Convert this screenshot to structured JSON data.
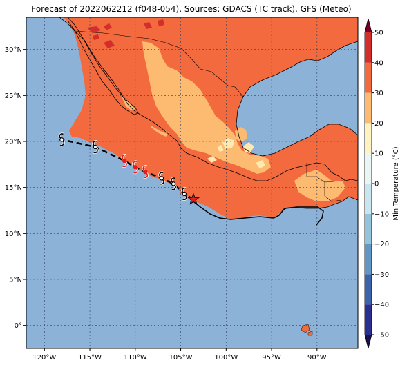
{
  "title": "Forecast of 2022062212 (f048-054), Sources: GDACS (TC track), GFS (Meteo)",
  "colors": {
    "ocean": "#8db2d7",
    "land_hot": "#f26a3e",
    "land_warm": "#fdbb71",
    "land_mild": "#fee9b2",
    "land_red": "#d32d2c",
    "track": "#000000",
    "storm_forecast": "#e41a1c",
    "current_position": "#e41a1c"
  },
  "chart_data": {
    "type": "map",
    "projection": "PlateCarree",
    "lon_range": [
      -122,
      -85.5
    ],
    "lat_range": [
      -2.5,
      33.5
    ],
    "x_ticks": [
      -120,
      -115,
      -110,
      -105,
      -100,
      -95,
      -90
    ],
    "x_tick_labels": [
      "120°W",
      "115°W",
      "110°W",
      "105°W",
      "100°W",
      "95°W",
      "90°W"
    ],
    "y_ticks": [
      0,
      5,
      10,
      15,
      20,
      25,
      30
    ],
    "y_tick_labels": [
      "0°",
      "5°N",
      "10°N",
      "15°N",
      "20°N",
      "25°N",
      "30°N"
    ],
    "grid": true,
    "colorbar": {
      "label": "Min Temperature (°C)",
      "ticks": [
        -50,
        -40,
        -30,
        -20,
        -10,
        0,
        10,
        20,
        30,
        40,
        50
      ],
      "tick_labels": [
        "−50",
        "−40",
        "−30",
        "−20",
        "−10",
        "0",
        "10",
        "20",
        "30",
        "40",
        "50"
      ],
      "levels": [
        -50,
        -40,
        -30,
        -20,
        -10,
        0,
        10,
        20,
        30,
        40,
        50
      ],
      "colors": [
        "#2b2f8f",
        "#3d64ab",
        "#6097c4",
        "#94c3dc",
        "#c8e6ef",
        "#eaf6f3",
        "#fff3c2",
        "#fdbb71",
        "#f26a3e",
        "#d32d2c",
        "#9c0a2a"
      ],
      "extend": "both",
      "under_color": "#1a1050",
      "over_color": "#7a0026"
    },
    "track": [
      {
        "lon": -103.6,
        "lat": 13.7,
        "marker": "star",
        "color": "red"
      },
      {
        "lon": -104.6,
        "lat": 14.3,
        "marker": "storm",
        "color": "black"
      },
      {
        "lon": -105.8,
        "lat": 15.4,
        "marker": "storm",
        "color": "black"
      },
      {
        "lon": -107.1,
        "lat": 16.0,
        "marker": "storm",
        "color": "black"
      },
      {
        "lon": -108.9,
        "lat": 16.7,
        "marker": "storm",
        "color": "red"
      },
      {
        "lon": -110.0,
        "lat": 17.2,
        "marker": "storm",
        "color": "red"
      },
      {
        "lon": -111.2,
        "lat": 17.9,
        "marker": "storm",
        "color": "red"
      },
      {
        "lon": -114.4,
        "lat": 19.4,
        "marker": "storm",
        "color": "black"
      },
      {
        "lon": -118.1,
        "lat": 20.2,
        "marker": "storm",
        "color": "black"
      }
    ]
  }
}
